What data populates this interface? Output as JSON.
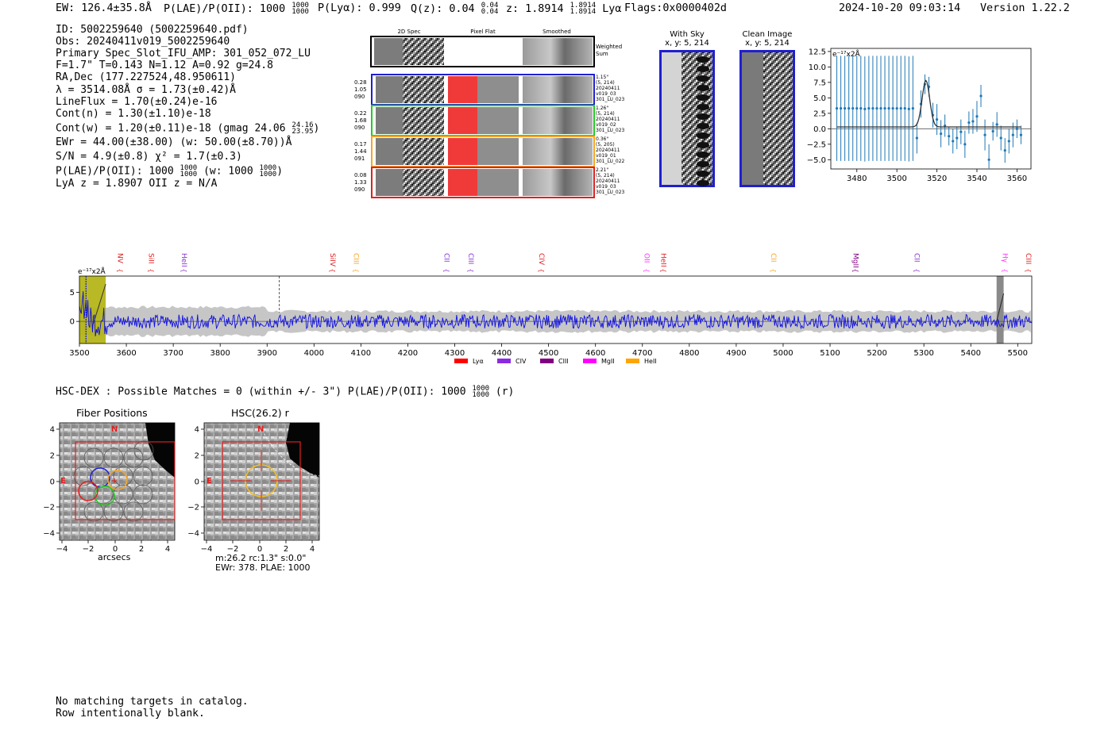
{
  "header": {
    "ew": "EW: 126.4±35.8Å",
    "plae_label": "P(LAE)/P(OII): 1000",
    "plae_hi": "1000",
    "plae_lo": "1000",
    "plya": "P(Lyα): 0.999",
    "qz_label": "Q(z): 0.04",
    "qz_hi": "0.04",
    "qz_lo": "0.04",
    "z_label": "z: 1.8914",
    "z_hi": "1.8914",
    "z_lo": "1.8914",
    "z_line": "Lyα",
    "flags": "Flags:0x0000402d",
    "timestamp": "2024-10-20 09:03:14",
    "version": "Version 1.22.2"
  },
  "info": {
    "id": "ID: 5002259640 (5002259640.pdf)",
    "obs": "Obs: 20240411v019_5002259640",
    "primary": "Primary Spec_Slot_IFU_AMP: 301_052_072_LU",
    "fta": "F=1.7\"  T=0.143  N=1.12  A=0.92  g=24.8",
    "radec": "RA,Dec (177.227524,48.950611)",
    "lambda": "λ = 3514.08Å   σ = 1.73(±0.42)Å",
    "lineflux": "LineFlux = 1.70(±0.24)e-16",
    "contn": "Cont(n) = 1.30(±1.10)e-18",
    "contw_a": "Cont(w) = 1.20(±0.11)e-18 (gmag 24.06",
    "contw_hi": "24.16",
    "contw_lo": "23.95",
    "contw_b": ")",
    "ewr": "EWr = 44.00(±38.00) (w: 50.00(±8.70))Å",
    "sn": "S/N = 4.9(±0.8)  χ² = 1.7(±0.3)",
    "plae_a": "P(LAE)/P(OII): 1000",
    "plae_hi": "1000",
    "plae_lo": "1000",
    "plae_w": "(w: 1000",
    "plae_whi": "1000",
    "plae_wlo": "1000",
    "plae_b": ")",
    "lyaz": "LyA z = 1.8907  OII z = N/A"
  },
  "cutouts": {
    "col_2d": "2D Spec",
    "col_flat": "Pixel Flat",
    "col_smooth": "Smoothed",
    "weighted": "Weighted",
    "weighted2": "Sum",
    "rows": [
      {
        "color": "#1f1fd0",
        "v1": "0.28",
        "v2": "1.05",
        "v3": "090",
        "r1": "1.15\"",
        "r2": "(5, 214)",
        "r3": "20240411",
        "r4": "v019_03",
        "r5": "301_LU_023"
      },
      {
        "color": "#22cc22",
        "v1": "0.22",
        "v2": "1.68",
        "v3": "090",
        "r1": "1.26\"",
        "r2": "(5, 214)",
        "r3": "20240411",
        "r4": "v019_02",
        "r5": "301_LU_023"
      },
      {
        "color": "#f5a623",
        "v1": "0.17",
        "v2": "1.44",
        "v3": "091",
        "r1": "0.36\"",
        "r2": "(5, 205)",
        "r3": "20240411",
        "r4": "v019_01",
        "r5": "301_LU_022"
      },
      {
        "color": "#e02020",
        "v1": "0.08",
        "v2": "1.33",
        "v3": "090",
        "r1": "2.21\"",
        "r2": "(5, 214)",
        "r3": "20240411",
        "r4": "v019_03",
        "r5": "301_LU_023"
      }
    ]
  },
  "with_sky": {
    "title": "With Sky",
    "sub": "x, y: 5, 214"
  },
  "clean_image": {
    "title": "Clean Image",
    "sub": "x, y: 5, 214"
  },
  "zoom_chart": {
    "type": "scatter",
    "unit_label": "e⁻¹⁷x2Å",
    "xlim": [
      3467,
      3567
    ],
    "ylim": [
      -6.5,
      13
    ],
    "xticks": [
      3480,
      3500,
      3520,
      3540,
      3560
    ],
    "yticks": [
      -5.0,
      -2.5,
      0.0,
      2.5,
      5.0,
      7.5,
      10.0,
      12.5
    ],
    "ytick_labels": [
      "−5.0",
      "−2.5",
      "0.0",
      "2.5",
      "5.0",
      "7.5",
      "10.0",
      "12.5"
    ],
    "points_x": [
      3470,
      3472,
      3474,
      3476,
      3478,
      3480,
      3482,
      3484,
      3486,
      3488,
      3490,
      3492,
      3494,
      3496,
      3498,
      3500,
      3502,
      3504,
      3506,
      3508,
      3510,
      3512,
      3514,
      3516,
      3518,
      3520,
      3522,
      3524,
      3526,
      3528,
      3530,
      3532,
      3534,
      3536,
      3538,
      3540,
      3542,
      3544,
      3546,
      3548,
      3550,
      3552,
      3554,
      3556,
      3558,
      3560,
      3562
    ],
    "points_y": [
      3.3,
      3.3,
      3.3,
      3.3,
      3.3,
      3.3,
      3.3,
      3.2,
      3.3,
      3.3,
      3.3,
      3.3,
      3.3,
      3.3,
      3.3,
      3.3,
      3.3,
      3.3,
      3.2,
      3.3,
      -1.5,
      4.0,
      7.2,
      6.8,
      2.2,
      1.5,
      -0.8,
      0.5,
      -1.2,
      -2.0,
      -1.5,
      -0.5,
      -2.5,
      1.0,
      1.2,
      2.0,
      5.3,
      -1.0,
      -5.0,
      -0.4,
      0.7,
      -1.5,
      -3.5,
      -2.0,
      -1.0,
      0.0,
      -1.0
    ],
    "errors": [
      8.5,
      8.5,
      8.5,
      8.5,
      8.5,
      8.5,
      8.5,
      8.5,
      8.5,
      8.5,
      8.5,
      8.5,
      8.5,
      8.5,
      8.5,
      8.5,
      8.5,
      8.5,
      8.5,
      8.5,
      2.5,
      2.2,
      1.6,
      1.6,
      2.0,
      2.5,
      2.2,
      1.8,
      1.5,
      2.0,
      1.8,
      2.0,
      2.2,
      1.8,
      2.0,
      2.5,
      1.8,
      2.5,
      2.5,
      1.5,
      2.0,
      2.0,
      2.0,
      2.0,
      2.0,
      1.5,
      1.5
    ],
    "model_baseline": 0.3,
    "model_peak": 7.8,
    "model_center": 3514.5,
    "model_sigma": 1.9
  },
  "full_spectrum": {
    "type": "line",
    "unit_label": "e⁻¹⁷x2Å",
    "xlim": [
      3500,
      5530
    ],
    "ylim": [
      -3.8,
      7.8
    ],
    "xticks": [
      3500,
      3600,
      3700,
      3800,
      3900,
      4000,
      4100,
      4200,
      4300,
      4400,
      4500,
      4600,
      4700,
      4800,
      4900,
      5000,
      5100,
      5200,
      5300,
      5400,
      5500
    ],
    "yticks": [
      0,
      5
    ],
    "detection_line": 3514,
    "dashed_marker": 3926,
    "grey_band": [
      5455,
      5470
    ],
    "lines": [
      {
        "name": "NV",
        "x": 3582,
        "color": "#e02020"
      },
      {
        "name": "SiII",
        "x": 3648,
        "color": "#e02020"
      },
      {
        "name": "HeII",
        "x": 3718,
        "color": "#8833cc"
      },
      {
        "name": "SiIV",
        "x": 4035,
        "color": "#e02020"
      },
      {
        "name": "CIII",
        "x": 4085,
        "color": "#f5a623"
      },
      {
        "name": "CII",
        "x": 4278,
        "color": "#8833cc"
      },
      {
        "name": "CIII",
        "x": 4330,
        "color": "#8833cc"
      },
      {
        "name": "CIV",
        "x": 4480,
        "color": "#e02020"
      },
      {
        "name": "OII",
        "x": 4705,
        "color": "#ff33ff"
      },
      {
        "name": "HeII",
        "x": 4740,
        "color": "#e02020"
      },
      {
        "name": "CII",
        "x": 4975,
        "color": "#f5a623"
      },
      {
        "name": "MgII",
        "x": 5150,
        "color": "#800080"
      },
      {
        "name": "CII",
        "x": 5280,
        "color": "#8833cc"
      },
      {
        "name": "Hγ",
        "x": 5468,
        "color": "#ff33ff"
      },
      {
        "name": "CIII",
        "x": 5518,
        "color": "#e02020"
      }
    ],
    "legend": [
      {
        "label": "Lyα",
        "color": "#ff0000"
      },
      {
        "label": "CIV",
        "color": "#8a2be2"
      },
      {
        "label": "CIII",
        "color": "#800080"
      },
      {
        "label": "MgII",
        "color": "#ff00ff"
      },
      {
        "label": "HeII",
        "color": "#ffa500"
      }
    ]
  },
  "hsc": {
    "summary_a": "HSC-DEX : Possible Matches = 0 (within +/- 3\")  P(LAE)/P(OII): 1000",
    "summary_hi": "1000",
    "summary_lo": "1000",
    "summary_b": "(r)",
    "panel1_title": "Fiber Positions",
    "panel2_title": "HSC(26.2) r",
    "xlabel": "arcsecs",
    "north": "N",
    "east": "E",
    "ticks": [
      "−4",
      "−2",
      "0",
      "2",
      "4"
    ],
    "yticks": [
      "4",
      "2",
      "0",
      "−2",
      "−4"
    ],
    "info1": "m:26.2 rc:1.3\"  s:0.0\"",
    "info2": "EWr: 378. PLAE: 1000"
  },
  "footer": {
    "line1": "No matching targets in catalog.",
    "line2": "Row intentionally blank."
  }
}
